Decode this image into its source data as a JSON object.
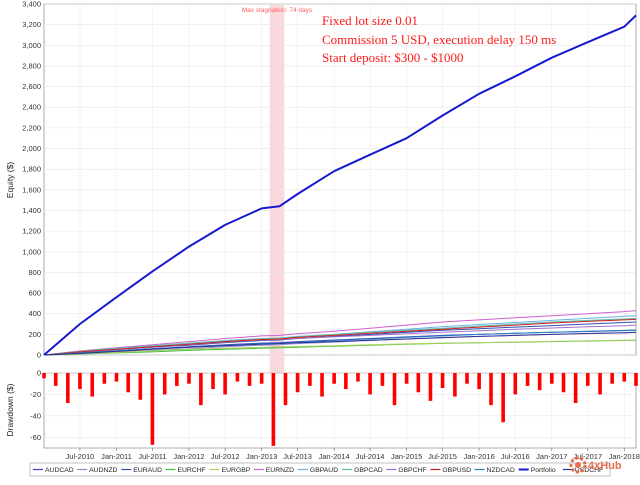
{
  "chart_data": [
    {
      "type": "line",
      "ylabel": "Equity ($)",
      "xlim": [
        "2010-01-01",
        "2018-03-01"
      ],
      "ylim": [
        0,
        3400
      ],
      "y_ticks": [
        0,
        200,
        400,
        600,
        800,
        1000,
        1200,
        1400,
        1600,
        1800,
        2000,
        2200,
        2400,
        2600,
        2800,
        3000,
        3200,
        3400
      ],
      "y_tick_labels": [
        "0",
        "200",
        "400",
        "600",
        "800",
        "1,000",
        "1,200",
        "1,400",
        "1,600",
        "1,800",
        "2,000",
        "2,200",
        "2,400",
        "2,600",
        "2,800",
        "3,000",
        "3,200",
        "3,400"
      ],
      "grid": true,
      "annotations": [
        "Fixed lot size 0.01",
        "Commission 5 USD, execution delay 150 ms",
        "Start deposit: $300 - $1000"
      ],
      "highlight": {
        "label": "Max stagnation: 74 days",
        "start": "2013-02-10",
        "end": "2013-04-25",
        "color": "#f9d9dc"
      },
      "x": [
        "2010-01-01",
        "2010-07-01",
        "2011-01-01",
        "2011-07-01",
        "2012-01-01",
        "2012-07-01",
        "2013-01-01",
        "2013-04-01",
        "2013-07-01",
        "2014-01-01",
        "2014-07-01",
        "2015-01-01",
        "2015-07-01",
        "2016-01-01",
        "2016-07-01",
        "2017-01-01",
        "2017-07-01",
        "2018-01-01",
        "2018-03-01"
      ],
      "series": [
        {
          "name": "AUDCAD",
          "color": "#4040c0",
          "values": [
            0,
            20,
            40,
            60,
            80,
            100,
            115,
            120,
            130,
            145,
            160,
            175,
            190,
            200,
            210,
            220,
            228,
            236,
            240
          ]
        },
        {
          "name": "AUDNZD",
          "color": "#9090d8",
          "values": [
            0,
            15,
            30,
            45,
            60,
            80,
            95,
            100,
            110,
            125,
            140,
            155,
            170,
            180,
            190,
            200,
            208,
            214,
            218
          ]
        },
        {
          "name": "EURAUD",
          "color": "#3050b0",
          "values": [
            0,
            30,
            55,
            75,
            95,
            120,
            140,
            145,
            160,
            180,
            200,
            220,
            240,
            255,
            270,
            285,
            300,
            315,
            320
          ]
        },
        {
          "name": "EURCHF",
          "color": "#40c040",
          "values": [
            0,
            10,
            20,
            30,
            45,
            55,
            65,
            70,
            75,
            85,
            95,
            105,
            112,
            118,
            124,
            130,
            136,
            140,
            142
          ]
        },
        {
          "name": "EURGBP",
          "color": "#b0d060",
          "values": [
            0,
            12,
            25,
            40,
            55,
            65,
            75,
            78,
            82,
            90,
            100,
            108,
            115,
            120,
            126,
            132,
            138,
            142,
            145
          ]
        },
        {
          "name": "EURNZD",
          "color": "#d060d0",
          "values": [
            0,
            40,
            70,
            100,
            130,
            160,
            185,
            190,
            205,
            230,
            260,
            290,
            320,
            340,
            360,
            380,
            400,
            420,
            430
          ]
        },
        {
          "name": "GBPAUD",
          "color": "#70b0e0",
          "values": [
            0,
            30,
            60,
            85,
            110,
            135,
            155,
            160,
            175,
            200,
            225,
            250,
            275,
            295,
            315,
            335,
            355,
            375,
            380
          ]
        },
        {
          "name": "GBPCAD",
          "color": "#60c0b0",
          "values": [
            0,
            35,
            65,
            90,
            115,
            140,
            160,
            165,
            180,
            200,
            220,
            240,
            260,
            280,
            300,
            320,
            335,
            350,
            355
          ]
        },
        {
          "name": "GBPCHF",
          "color": "#a070d0",
          "values": [
            0,
            25,
            50,
            75,
            100,
            125,
            145,
            150,
            160,
            175,
            190,
            205,
            220,
            235,
            250,
            262,
            274,
            284,
            290
          ]
        },
        {
          "name": "GBPUSD",
          "color": "#d02020",
          "values": [
            0,
            30,
            55,
            80,
            105,
            130,
            150,
            155,
            170,
            190,
            210,
            230,
            250,
            270,
            290,
            310,
            325,
            340,
            345
          ]
        },
        {
          "name": "NZDCAD",
          "color": "#2080c0",
          "values": [
            0,
            20,
            40,
            60,
            75,
            95,
            110,
            115,
            125,
            140,
            155,
            170,
            185,
            200,
            210,
            220,
            230,
            238,
            242
          ]
        },
        {
          "name": "Portfolio",
          "color": "#1818d0",
          "values": [
            0,
            300,
            560,
            810,
            1050,
            1260,
            1420,
            1440,
            1560,
            1780,
            1940,
            2100,
            2320,
            2530,
            2700,
            2880,
            3030,
            3180,
            3290
          ]
        },
        {
          "name": "USDCHF",
          "color": "#303090",
          "values": [
            0,
            15,
            35,
            55,
            75,
            90,
            105,
            110,
            118,
            130,
            142,
            155,
            168,
            180,
            190,
            200,
            208,
            216,
            220
          ]
        }
      ]
    },
    {
      "type": "area",
      "ylabel": "Drawdown ($)",
      "ylim": [
        -70,
        0
      ],
      "y_ticks": [
        0,
        -20,
        -40,
        -60
      ],
      "y_tick_labels": [
        "0",
        "-20",
        "-40",
        "-60"
      ],
      "color": "#ff0000",
      "x_tick_labels": [
        "Jul-2010",
        "Jan-2011",
        "Jul-2011",
        "Jan-2012",
        "Jul-2012",
        "Jan-2013",
        "Jul-2013",
        "Jan-2014",
        "Jul-2014",
        "Jan-2015",
        "Jul-2015",
        "Jan-2016",
        "Jul-2016",
        "Jan-2017",
        "Jul-2017",
        "Jan-2018"
      ],
      "x_ticks": [
        "2010-07-01",
        "2011-01-01",
        "2011-07-01",
        "2012-01-01",
        "2012-07-01",
        "2013-01-01",
        "2013-07-01",
        "2014-01-01",
        "2014-07-01",
        "2015-01-01",
        "2015-07-01",
        "2016-01-01",
        "2016-07-01",
        "2017-01-01",
        "2017-07-01",
        "2018-01-01"
      ],
      "x": [
        "2010-01-01",
        "2010-03-01",
        "2010-05-01",
        "2010-07-01",
        "2010-09-01",
        "2010-11-01",
        "2011-01-01",
        "2011-03-01",
        "2011-05-01",
        "2011-07-01",
        "2011-09-01",
        "2011-11-01",
        "2012-01-01",
        "2012-03-01",
        "2012-05-01",
        "2012-07-01",
        "2012-09-01",
        "2012-11-01",
        "2013-01-01",
        "2013-03-01",
        "2013-05-01",
        "2013-07-01",
        "2013-09-01",
        "2013-11-01",
        "2014-01-01",
        "2014-03-01",
        "2014-05-01",
        "2014-07-01",
        "2014-09-01",
        "2014-11-01",
        "2015-01-01",
        "2015-03-01",
        "2015-05-01",
        "2015-07-01",
        "2015-09-01",
        "2015-11-01",
        "2016-01-01",
        "2016-03-01",
        "2016-05-01",
        "2016-07-01",
        "2016-09-01",
        "2016-11-01",
        "2017-01-01",
        "2017-03-01",
        "2017-05-01",
        "2017-07-01",
        "2017-09-01",
        "2017-11-01",
        "2018-01-01",
        "2018-03-01"
      ],
      "values": [
        -5,
        -12,
        -28,
        -15,
        -22,
        -10,
        -8,
        -18,
        -25,
        -67,
        -20,
        -12,
        -10,
        -30,
        -15,
        -20,
        -8,
        -12,
        -10,
        -68,
        -30,
        -18,
        -12,
        -22,
        -10,
        -15,
        -8,
        -20,
        -12,
        -30,
        -10,
        -18,
        -26,
        -14,
        -22,
        -10,
        -15,
        -30,
        -46,
        -20,
        -12,
        -16,
        -10,
        -18,
        -28,
        -12,
        -20,
        -10,
        -8,
        -12
      ]
    }
  ],
  "legend": [
    {
      "name": "AUDCAD",
      "color": "#4040c0"
    },
    {
      "name": "AUDNZD",
      "color": "#9090d8"
    },
    {
      "name": "EURAUD",
      "color": "#3050b0"
    },
    {
      "name": "EURCHF",
      "color": "#40c040"
    },
    {
      "name": "EURGBP",
      "color": "#b0d060"
    },
    {
      "name": "EURNZD",
      "color": "#d060d0"
    },
    {
      "name": "GBPAUD",
      "color": "#70b0e0"
    },
    {
      "name": "GBPCAD",
      "color": "#60c0b0"
    },
    {
      "name": "GBPCHF",
      "color": "#a070d0"
    },
    {
      "name": "GBPUSD",
      "color": "#d02020"
    },
    {
      "name": "NZDCAD",
      "color": "#2080c0"
    },
    {
      "name": "Portfolio",
      "color": "#1818d0"
    },
    {
      "name": "USDCHF",
      "color": "#303090"
    }
  ],
  "watermark": {
    "text": "4xHub",
    "icon": "gear-icon",
    "color": "#e8603c"
  }
}
